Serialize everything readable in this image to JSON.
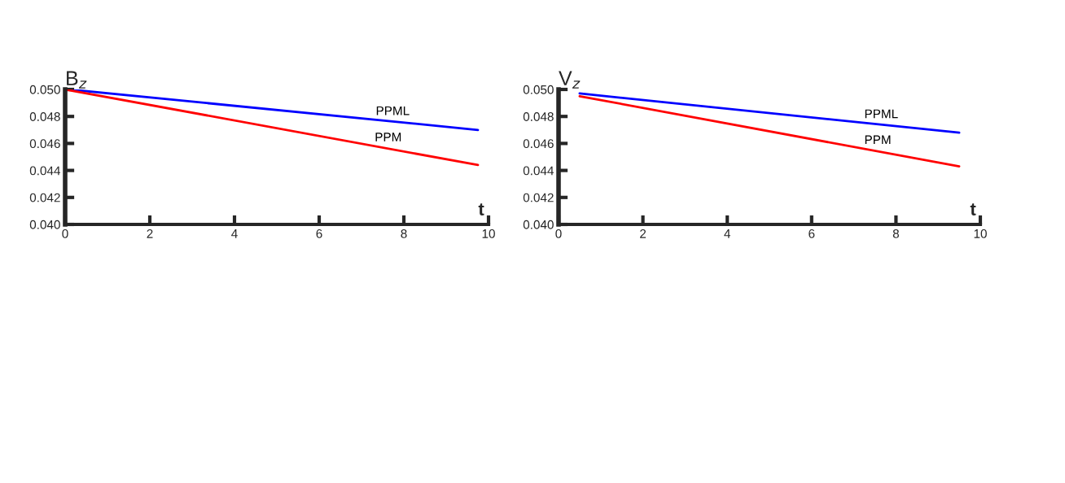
{
  "chart_data": [
    {
      "type": "line",
      "title": "B$_{z}$",
      "xlabel": "t",
      "series": [
        {
          "name": "PPML",
          "color": "#0000ff",
          "x": [
            0.1,
            9.75
          ],
          "values": [
            0.05,
            0.047
          ]
        },
        {
          "name": "PPM",
          "color": "#ff0000",
          "x": [
            0.0,
            9.75
          ],
          "values": [
            0.05,
            0.0444
          ]
        }
      ],
      "xlim": [
        0,
        10
      ],
      "xticks": [
        0,
        2,
        4,
        6,
        8,
        10
      ],
      "ylim": [
        0.04,
        0.05
      ],
      "yticks": [
        {
          "value": 0.04,
          "label": "0.040"
        },
        {
          "value": 0.042,
          "label": "0.042"
        },
        {
          "value": 0.044,
          "label": "0.044"
        },
        {
          "value": 0.046,
          "label": "0.046"
        },
        {
          "value": 0.048,
          "label": "0.048"
        },
        {
          "value": 0.05,
          "label": "0.050"
        }
      ],
      "grid": false,
      "legend": false
    },
    {
      "type": "line",
      "title": "V$_{z}$",
      "xlabel": "t",
      "series": [
        {
          "name": "PPML",
          "color": "#0000ff",
          "x": [
            0.5,
            9.5
          ],
          "values": [
            0.0497,
            0.0468
          ]
        },
        {
          "name": "PPM",
          "color": "#ff0000",
          "x": [
            0.5,
            9.5
          ],
          "values": [
            0.0495,
            0.0443
          ]
        }
      ],
      "xlim": [
        0,
        10
      ],
      "xticks": [
        0,
        2,
        4,
        6,
        8,
        10
      ],
      "ylim": [
        0.04,
        0.05
      ],
      "yticks": [
        {
          "value": 0.04,
          "label": "0.040"
        },
        {
          "value": 0.042,
          "label": "0.042"
        },
        {
          "value": 0.044,
          "label": "0.044"
        },
        {
          "value": 0.046,
          "label": "0.046"
        },
        {
          "value": 0.048,
          "label": "0.048"
        },
        {
          "value": 0.05,
          "label": "0.050"
        }
      ],
      "grid": false,
      "legend": false
    }
  ]
}
